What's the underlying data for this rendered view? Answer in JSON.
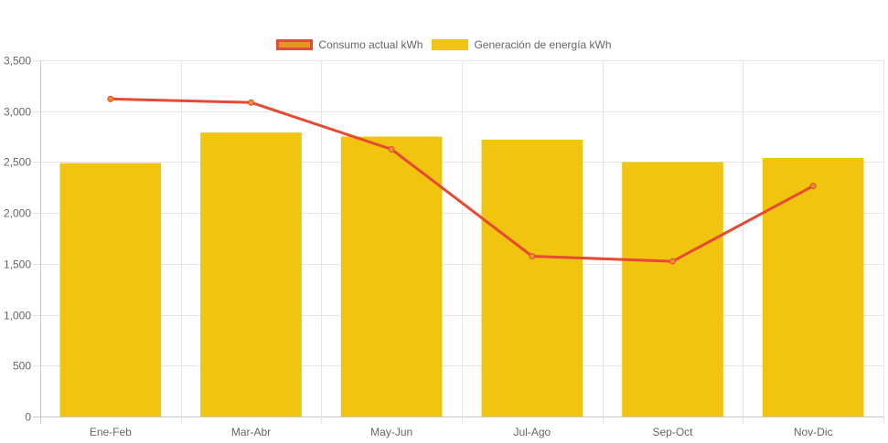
{
  "chart_data": {
    "type": "bar",
    "categories": [
      "Ene-Feb",
      "Mar-Abr",
      "May-Jun",
      "Jul-Ago",
      "Sep-Oct",
      "Nov-Dic"
    ],
    "series": [
      {
        "name": "Consumo actual kWh",
        "type": "line",
        "color": "#e64a33",
        "fill": "#e8912d",
        "values": [
          3120,
          3085,
          2625,
          1575,
          1525,
          2265
        ]
      },
      {
        "name": "Generación de energía kWh",
        "type": "bar",
        "color": "#f1c40f",
        "values": [
          2490,
          2790,
          2750,
          2720,
          2500,
          2540
        ]
      }
    ],
    "y_ticks": [
      "0",
      "500",
      "1,000",
      "1,500",
      "2,000",
      "2,500",
      "3,000",
      "3,500"
    ],
    "ylim": [
      0,
      3500
    ],
    "grid": true,
    "legend_position": "top"
  }
}
